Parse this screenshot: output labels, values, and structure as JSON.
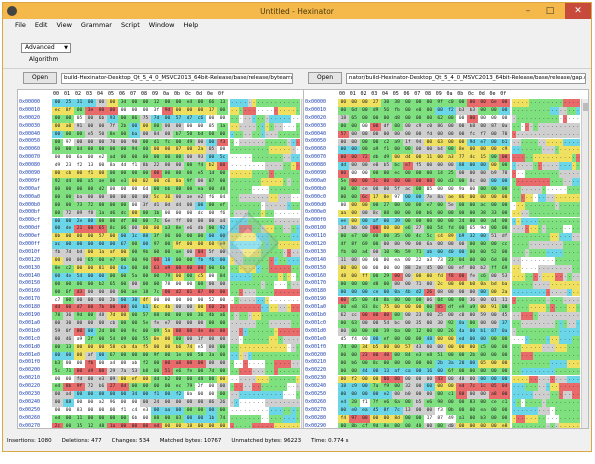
{
  "window": {
    "title": "Untitled - Hexinator",
    "minimize": "–",
    "maximize": "□",
    "close": "✕"
  },
  "menu": [
    "File",
    "Edit",
    "View",
    "Grammar",
    "Script",
    "Window",
    "Help"
  ],
  "toolbar": {
    "mode": "Advanced",
    "algorithm_label": "Algorithm"
  },
  "left": {
    "open_label": "Open",
    "path": "build-Hexinator-Desktop_Qt_5_4_0_MSVC2013_64bit-Release/base/release/bytearray.obj"
  },
  "right": {
    "open_label": "Open",
    "path": "nator/build-Hexinator-Desktop_Qt_5_4_0_MSVC2013_64bit-Release/base/release/gap.obj"
  },
  "columns": [
    "00",
    "01",
    "02",
    "03",
    "04",
    "05",
    "06",
    "07",
    "08",
    "09",
    "0a",
    "0b",
    "0c",
    "0d",
    "0e",
    "0f"
  ],
  "left_addresses": [
    "0x00000",
    "0x00010",
    "0x00020",
    "0x00030",
    "0x00040",
    "0x00050",
    "0x00060",
    "0x00070",
    "0x00080",
    "0x00090",
    "0x0009f",
    "0x000af",
    "0x000a0",
    "0x000b0",
    "0x000bf",
    "0x000cf",
    "0x000df",
    "0x000ef",
    "0x000ff",
    "0x0010f",
    "0x00120",
    "0x00130",
    "0x00140",
    "0x00150",
    "0x00160",
    "0x00170",
    "0x00180",
    "0x00190",
    "0x001a0",
    "0x001b0",
    "0x001c0",
    "0x001d0",
    "0x001e0",
    "0x001f0",
    "0x00200",
    "0x00210",
    "0x00220",
    "0x00230",
    "0x00240",
    "0x00250",
    "0x00260",
    "0x00270",
    "0x00280"
  ],
  "right_addresses": [
    "0x00000",
    "0x00010",
    "0x00020",
    "0x00030",
    "0x00040",
    "0x00050",
    "0x00060",
    "0x00070",
    "0x00080",
    "0x00090",
    "0x000a0",
    "0x000b0",
    "0x000c0",
    "0x000d0",
    "0x000e0",
    "0x000f0",
    "0x00100",
    "0x00110",
    "0x00120",
    "0x00130",
    "0x00140",
    "0x00150",
    "0x00160",
    "0x00170",
    "0x00180",
    "0x00190",
    "0x001a0",
    "0x001b0",
    "0x001c0",
    "0x001d0",
    "0x001e0",
    "0x001f0",
    "0x00200",
    "0x00210",
    "0x00220",
    "0x00230",
    "0x00240",
    "0x00250",
    "0x00260",
    "0x00270",
    "0x00280",
    "0x00290",
    "0x002a0"
  ],
  "colors": {
    "same": "#7ee07e",
    "changed": "#f0e060",
    "deleted": "#e86a6a",
    "inserted": "#6ad6e8",
    "empty": "#cfcfcf",
    "unmatched": "#ffffff"
  },
  "status": {
    "insertions": "Insertions: 1080",
    "deletions": "Deletions: 477",
    "changes": "Changes: 534",
    "matched": "Matched bytes: 10767",
    "unmatched": "Unmatched bytes: 96223",
    "time": "Time: 0.774 s"
  }
}
